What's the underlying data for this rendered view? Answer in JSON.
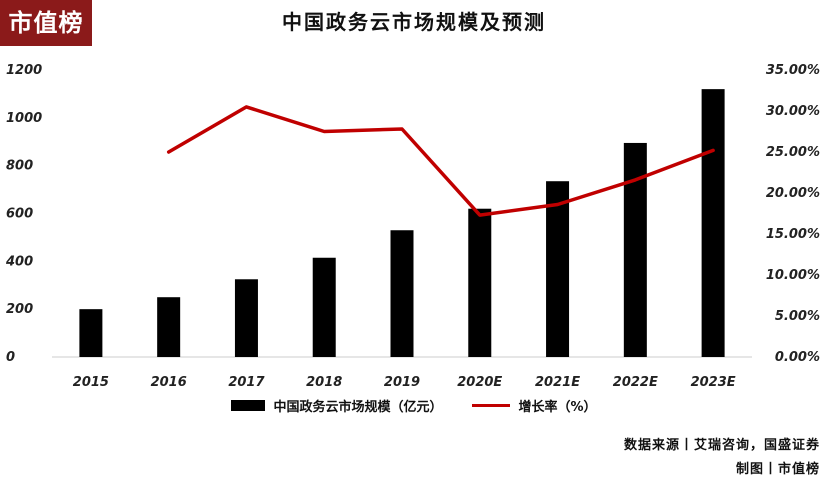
{
  "brand": {
    "logo_text": "市值榜"
  },
  "footer": {
    "source": "数据来源丨艾瑞咨询，国盛证券",
    "credit": "制图丨市值榜"
  },
  "colors": {
    "bar": "#000000",
    "line": "#c00000",
    "logo_bg": "#8b1a1a"
  },
  "chart_data": {
    "type": "bar",
    "title": "中国政务云市场规模及预测",
    "categories": [
      "2015",
      "2016",
      "2017",
      "2018",
      "2019",
      "2020E",
      "2021E",
      "2022E",
      "2023E"
    ],
    "series": [
      {
        "name": "中国政务云市场规模（亿元）",
        "type": "bar",
        "axis": "left",
        "values": [
          200,
          250,
          325,
          415,
          530,
          620,
          735,
          895,
          1120
        ]
      },
      {
        "name": "增长率（%）",
        "type": "line",
        "axis": "right",
        "values": [
          null,
          25.0,
          30.5,
          27.5,
          27.8,
          17.3,
          18.6,
          21.6,
          25.2
        ]
      }
    ],
    "y_left": {
      "ylim": [
        0,
        1200
      ],
      "ticks": [
        "0",
        "200",
        "400",
        "600",
        "800",
        "1000",
        "1200"
      ],
      "values": [
        0,
        200,
        400,
        600,
        800,
        1000,
        1200
      ]
    },
    "y_right": {
      "ylim": [
        0,
        35
      ],
      "ticks": [
        "0.00%",
        "5.00%",
        "10.00%",
        "15.00%",
        "20.00%",
        "25.00%",
        "30.00%",
        "35.00%"
      ],
      "values": [
        0,
        5,
        10,
        15,
        20,
        25,
        30,
        35
      ]
    },
    "grid": false,
    "legend_position": "bottom"
  }
}
